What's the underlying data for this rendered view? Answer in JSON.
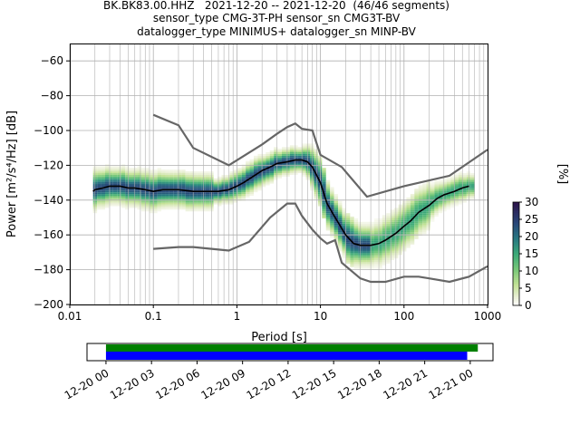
{
  "title": {
    "line1": "BK.BK83.00.HHZ   2021-12-20 -- 2021-12-20  (46/46 segments)",
    "line2": "sensor_type CMG-3T-PH sensor_sn CMG3T-BV",
    "line3": "datalogger_type MINIMUS+ datalogger_sn MINP-BV"
  },
  "colors": {
    "median": "#000000",
    "noise_models": "#666666",
    "coverage_top": "#008000",
    "coverage_bottom": "#0000ff"
  },
  "chart_data": [
    {
      "type": "heatmap",
      "name": "ppsd",
      "xlabel": "Period [s]",
      "ylabel": "Power [m²/s⁴/Hz] [dB]",
      "xscale": "log",
      "xlim": [
        0.01,
        1000
      ],
      "ylim": [
        -200,
        -50
      ],
      "xticks": [
        "0.01",
        "0.1",
        "1",
        "10",
        "100",
        "1000"
      ],
      "yticks": [
        "-60",
        "-80",
        "-100",
        "-120",
        "-140",
        "-160",
        "-180",
        "-200"
      ],
      "grid": true,
      "colorbar": {
        "label": "[%]",
        "range": [
          0,
          30
        ],
        "ticks": [
          "0",
          "5",
          "10",
          "15",
          "20",
          "25",
          "30"
        ],
        "colormap": "cubehelix-like"
      },
      "series": [
        {
          "x": [
            0.019,
            0.02,
            0.025,
            0.03,
            0.04,
            0.05,
            0.06,
            0.08,
            0.1,
            0.13,
            0.15,
            0.2,
            0.3,
            0.4,
            0.5,
            0.6,
            0.8,
            1.0,
            1.2,
            1.5,
            2,
            2.5,
            3,
            4,
            5,
            6,
            7,
            8,
            10,
            12,
            15,
            20,
            25,
            30,
            40,
            50,
            60,
            80,
            100,
            120,
            150,
            200,
            250,
            300,
            400,
            500,
            600
          ],
          "y": [
            -135,
            -134,
            -133,
            -132,
            -132,
            -133,
            -133,
            -134,
            -135,
            -134,
            -134,
            -134,
            -135,
            -135,
            -135,
            -135,
            -134,
            -132,
            -130,
            -127,
            -123,
            -121,
            -119,
            -118,
            -117,
            -117,
            -118,
            -121,
            -130,
            -142,
            -150,
            -160,
            -165,
            -166,
            -166,
            -165,
            -163,
            -159,
            -155,
            -152,
            -147,
            -143,
            -139,
            -137,
            -135,
            -133,
            -132
          ]
        },
        {
          "x": [
            0.1,
            0.2,
            0.3,
            0.8,
            2,
            3,
            4,
            5,
            6,
            8,
            10,
            18,
            36,
            100,
            350,
            1000
          ],
          "y": [
            -91,
            -97,
            -110,
            -120,
            -108,
            -102,
            -98,
            -96,
            -99,
            -100,
            -114,
            -121,
            -138,
            -132,
            -126,
            -111
          ]
        },
        {
          "x": [
            0.1,
            0.2,
            0.3,
            0.8,
            1.4,
            2.5,
            4,
            5,
            6,
            8,
            10,
            12,
            15,
            18,
            30,
            40,
            60,
            100,
            150,
            200,
            350,
            600,
            1000
          ],
          "y": [
            -168,
            -167,
            -167,
            -169,
            -164,
            -150,
            -142,
            -142,
            -149,
            -157,
            -162,
            -165,
            -163,
            -176,
            -185,
            -187,
            -187,
            -184,
            -184,
            -185,
            -187,
            -184,
            -178
          ]
        }
      ]
    },
    {
      "type": "bar",
      "name": "coverage",
      "xticks": [
        "12-20 00",
        "12-20 03",
        "12-20 06",
        "12-20 09",
        "12-20 12",
        "12-20 15",
        "12-20 18",
        "12-20 21",
        "12-21 00"
      ],
      "xlim_hours": [
        -1.25,
        25.5
      ],
      "series": [
        {
          "range_hours": [
            0,
            24.5
          ]
        },
        {
          "range_hours": [
            0,
            23.8
          ]
        }
      ]
    }
  ]
}
